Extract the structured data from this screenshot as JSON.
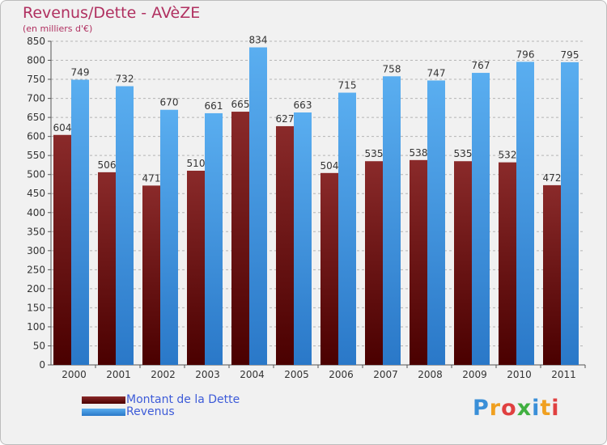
{
  "chart_data": {
    "type": "bar",
    "title": "Revenus/Dette - AVèZE",
    "subtitle": "(en milliers d'€)",
    "xlabel": "",
    "ylabel": "",
    "ylim": [
      0,
      850
    ],
    "ytick_step": 50,
    "yticks": [
      "0",
      "50",
      "100",
      "150",
      "200",
      "250",
      "300",
      "350",
      "400",
      "450",
      "500",
      "550",
      "600",
      "650",
      "700",
      "750",
      "800",
      "850"
    ],
    "grid": true,
    "categories": [
      "2000",
      "2001",
      "2002",
      "2003",
      "2004",
      "2005",
      "2006",
      "2007",
      "2008",
      "2009",
      "2010",
      "2011"
    ],
    "series": [
      {
        "name": "Montant de la Dette",
        "color": "#7a1a1a",
        "values": [
          604,
          506,
          471,
          510,
          665,
          627,
          504,
          535,
          538,
          535,
          532,
          472
        ]
      },
      {
        "name": "Revenus",
        "color": "#3a8fdc",
        "values": [
          749,
          732,
          670,
          661,
          834,
          663,
          715,
          758,
          747,
          767,
          796,
          795
        ]
      }
    ],
    "legend_position": "bottom-left"
  },
  "logo_text": "Proxiti"
}
